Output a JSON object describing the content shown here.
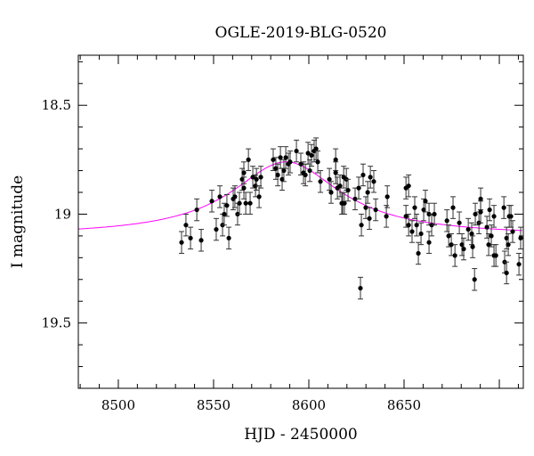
{
  "chart_data": {
    "type": "scatter",
    "title": "OGLE-2019-BLG-0520",
    "xlabel": "HJD - 2450000",
    "ylabel": "I magnitude",
    "xlim": [
      8479,
      8712.6
    ],
    "ylim": [
      19.8,
      18.27
    ],
    "y_inverted": true,
    "xticks": [
      8500,
      8550,
      8600,
      8650
    ],
    "xtick_labels": [
      "8500",
      "8550",
      "8600",
      "8650"
    ],
    "yticks": [
      18.5,
      19,
      19.5
    ],
    "ytick_labels": [
      "18.5",
      "19",
      "19.5"
    ],
    "colors": {
      "points": "#000000",
      "model": "#ff00ff"
    },
    "error": 0.05,
    "points": [
      [
        8533.2,
        19.13
      ],
      [
        8535.5,
        19.05
      ],
      [
        8537.9,
        19.11
      ],
      [
        8541.2,
        18.98
      ],
      [
        8543.5,
        19.12
      ],
      [
        8549.1,
        18.94
      ],
      [
        8551.4,
        19.07
      ],
      [
        8553.3,
        18.92
      ],
      [
        8554.7,
        19.05
      ],
      [
        8555.6,
        19.0
      ],
      [
        8557.0,
        18.96
      ],
      [
        8558.0,
        19.11
      ],
      [
        8560.3,
        18.93
      ],
      [
        8561.2,
        18.92
      ],
      [
        8562.6,
        19.0
      ],
      [
        8563.6,
        18.95
      ],
      [
        8565.0,
        18.84
      ],
      [
        8565.9,
        18.88
      ],
      [
        8565.9,
        18.81
      ],
      [
        8566.9,
        18.95
      ],
      [
        8568.3,
        18.75
      ],
      [
        8569.2,
        18.95
      ],
      [
        8570.6,
        18.83
      ],
      [
        8572.0,
        18.87
      ],
      [
        8572.5,
        18.84
      ],
      [
        8573.9,
        18.92
      ],
      [
        8574.8,
        18.83
      ],
      [
        8581.3,
        18.75
      ],
      [
        8582.7,
        18.79
      ],
      [
        8583.7,
        18.82
      ],
      [
        8585.1,
        18.74
      ],
      [
        8586.0,
        18.84
      ],
      [
        8586.9,
        18.8
      ],
      [
        8587.9,
        18.74
      ],
      [
        8589.3,
        18.77
      ],
      [
        8590.2,
        18.76
      ],
      [
        8593.5,
        18.71
      ],
      [
        8595.8,
        18.77
      ],
      [
        8597.2,
        18.81
      ],
      [
        8598.2,
        18.82
      ],
      [
        8599.6,
        18.72
      ],
      [
        8600.5,
        18.8
      ],
      [
        8601.4,
        18.73
      ],
      [
        8602.8,
        18.71
      ],
      [
        8603.8,
        18.7
      ],
      [
        8604.7,
        18.76
      ],
      [
        8606.1,
        18.85
      ],
      [
        8610.8,
        18.84
      ],
      [
        8611.7,
        18.9
      ],
      [
        8614.1,
        18.75
      ],
      [
        8614.1,
        18.81
      ],
      [
        8615.0,
        18.88
      ],
      [
        8616.4,
        18.87
      ],
      [
        8617.3,
        18.95
      ],
      [
        8618.7,
        18.95
      ],
      [
        8619.7,
        18.84
      ],
      [
        8628.5,
        18.82
      ],
      [
        8632.3,
        18.83
      ],
      [
        8634.1,
        18.85
      ],
      [
        8630.9,
        18.9
      ],
      [
        8627.6,
        19.05
      ],
      [
        8627.1,
        19.34
      ],
      [
        8624.3,
        18.93
      ],
      [
        8626.2,
        18.88
      ],
      [
        8620.6,
        18.89
      ],
      [
        8618.3,
        18.83
      ],
      [
        8617.8,
        18.95
      ],
      [
        8629.9,
        18.97
      ],
      [
        8631.8,
        19.02
      ],
      [
        8635.1,
        18.98
      ],
      [
        8641.2,
        18.92
      ],
      [
        8640.7,
        19.01
      ],
      [
        8651.0,
        18.88
      ],
      [
        8652.4,
        18.87
      ],
      [
        8651.0,
        19.01
      ],
      [
        8652.4,
        19.05
      ],
      [
        8654.2,
        19.08
      ],
      [
        8655.6,
        18.97
      ],
      [
        8656.6,
        19.05
      ],
      [
        8657.5,
        19.18
      ],
      [
        8658.9,
        19.09
      ],
      [
        8660.3,
        18.98
      ],
      [
        8661.2,
        18.94
      ],
      [
        8663.1,
        19.0
      ],
      [
        8663.1,
        19.13
      ],
      [
        8664.5,
        19.05
      ],
      [
        8665.9,
        19.0
      ],
      [
        8672.5,
        19.03
      ],
      [
        8673.4,
        19.1
      ],
      [
        8674.8,
        19.14
      ],
      [
        8675.7,
        18.97
      ],
      [
        8676.7,
        19.19
      ],
      [
        8679.0,
        19.04
      ],
      [
        8680.4,
        19.14
      ],
      [
        8681.3,
        19.16
      ],
      [
        8683.7,
        19.07
      ],
      [
        8685.5,
        19.09
      ],
      [
        8686.0,
        19.15
      ],
      [
        8687.0,
        19.3
      ],
      [
        8687.4,
        19.0
      ],
      [
        8689.3,
        19.04
      ],
      [
        8690.2,
        18.93
      ],
      [
        8690.2,
        18.99
      ],
      [
        8693.5,
        19.06
      ],
      [
        8694.4,
        19.14
      ],
      [
        8694.9,
        18.98
      ],
      [
        8695.8,
        19.1
      ],
      [
        8697.2,
        19.01
      ],
      [
        8697.2,
        19.19
      ],
      [
        8698.2,
        19.19
      ],
      [
        8702.4,
        18.97
      ],
      [
        8702.8,
        19.22
      ],
      [
        8703.8,
        19.27
      ],
      [
        8703.8,
        19.11
      ],
      [
        8704.7,
        19.14
      ],
      [
        8705.2,
        19.01
      ],
      [
        8706.1,
        19.01
      ],
      [
        8707.0,
        19.08
      ],
      [
        8710.3,
        19.23
      ],
      [
        8711.2,
        19.11
      ]
    ],
    "model": {
      "t0": 8588,
      "baseline": 19.1,
      "amplitude": 0.34,
      "width": 35
    }
  }
}
